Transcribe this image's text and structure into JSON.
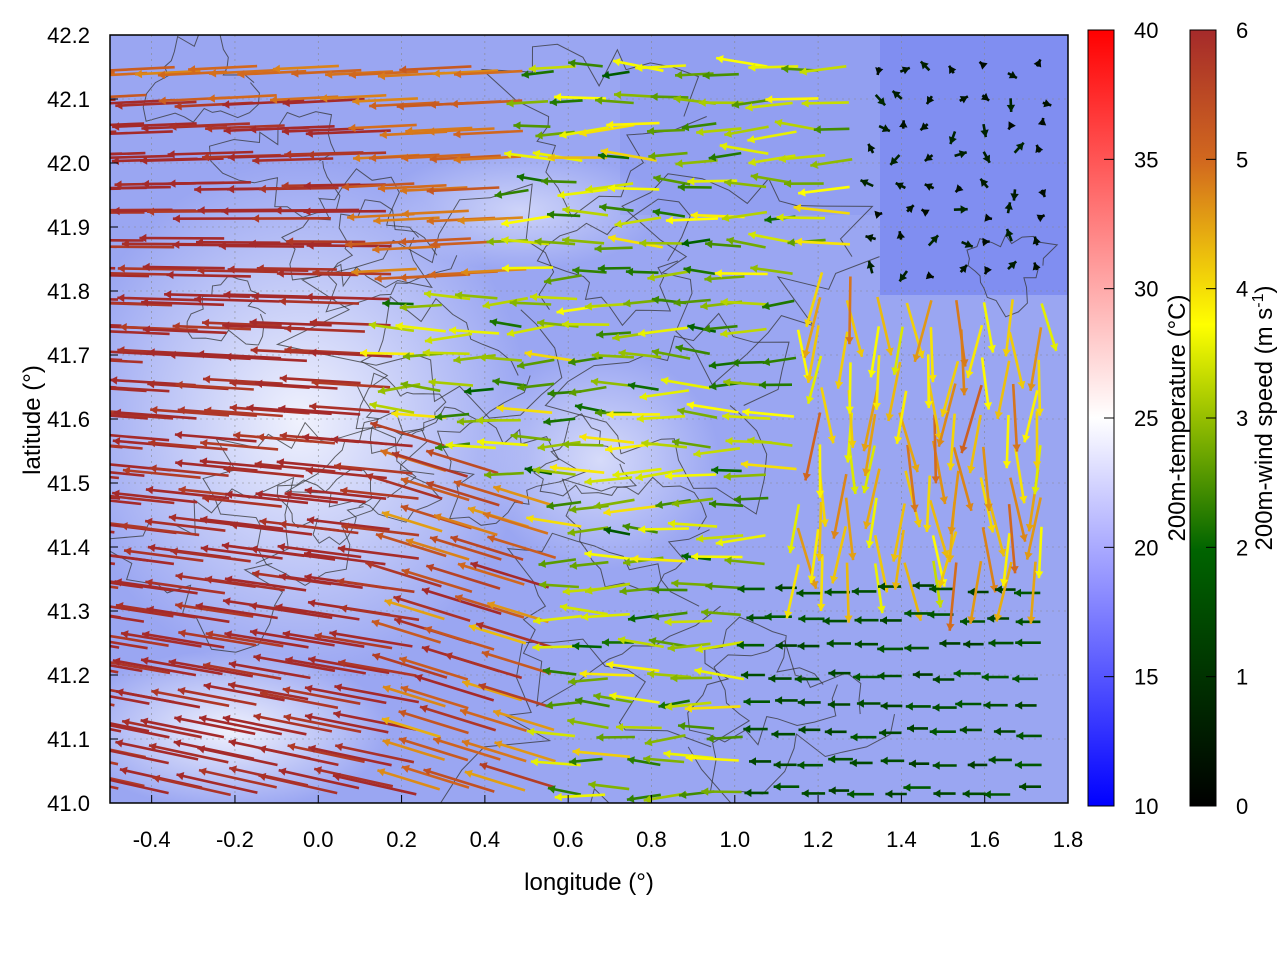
{
  "chart_data": {
    "type": "vector-field-map",
    "xlabel": "longitude (°)",
    "ylabel": "latitude (°)",
    "xlim": [
      -0.5,
      1.8
    ],
    "ylim": [
      41.0,
      42.2
    ],
    "xticks": [
      "-0.4",
      "-0.2",
      "0.0",
      "0.2",
      "0.4",
      "0.6",
      "0.8",
      "1.0",
      "1.2",
      "1.4",
      "1.6",
      "1.8"
    ],
    "yticks": [
      "41.0",
      "41.1",
      "41.2",
      "41.3",
      "41.4",
      "41.5",
      "41.6",
      "41.7",
      "41.8",
      "41.9",
      "42.0",
      "42.1",
      "42.2"
    ],
    "xtick_values": [
      -0.4,
      -0.2,
      0.0,
      0.2,
      0.4,
      0.6,
      0.8,
      1.0,
      1.2,
      1.4,
      1.6,
      1.8
    ],
    "ytick_values": [
      41.0,
      41.1,
      41.2,
      41.3,
      41.4,
      41.5,
      41.6,
      41.7,
      41.8,
      41.9,
      42.0,
      42.1,
      42.2
    ],
    "grid": true,
    "temperature_colorbar": {
      "label": "200m-temperature (°C)",
      "range": [
        10,
        40
      ],
      "ticks": [
        "10",
        "15",
        "20",
        "25",
        "30",
        "35",
        "40"
      ],
      "tick_values": [
        10,
        15,
        20,
        25,
        30,
        35,
        40
      ],
      "colors": [
        "#0000ff",
        "#ffffff",
        "#ff0000"
      ]
    },
    "wind_colorbar": {
      "label_main": "200m-wind speed (m s",
      "label_sup": "-1",
      "label_end": ")",
      "range": [
        0,
        6
      ],
      "ticks": [
        "0",
        "1",
        "2",
        "3",
        "4",
        "5",
        "6"
      ],
      "tick_values": [
        0,
        1,
        2,
        3,
        4,
        5,
        6
      ],
      "colors": [
        "#000000",
        "#006400",
        "#ffff00",
        "#d2691e",
        "#a52a2a"
      ]
    },
    "wind_regions_m_s": {
      "southwest_plain": 6,
      "northwest": 5,
      "central_band": 3,
      "eastern_sea": 1.5,
      "northeast_calm": 0.5
    }
  }
}
